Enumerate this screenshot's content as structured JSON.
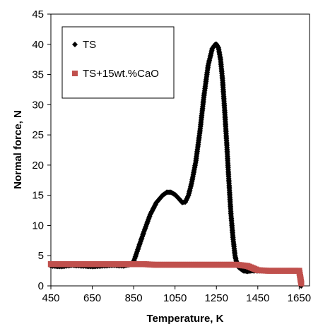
{
  "chart_data": {
    "type": "scatter",
    "title": "",
    "xlabel": "Temperature, K",
    "ylabel": "Normal force, N",
    "xlim": [
      450,
      1700
    ],
    "ylim": [
      0,
      45
    ],
    "xticks": [
      "450",
      "650",
      "850",
      "1050",
      "1250",
      "1450",
      "1650"
    ],
    "yticks": [
      "0",
      "5",
      "10",
      "15",
      "20",
      "25",
      "30",
      "35",
      "40",
      "45"
    ],
    "grid": false,
    "legend_position": "top-left",
    "series": [
      {
        "name": "TS",
        "marker": "diamond",
        "color": "#000000",
        "x": [
          450,
          500,
          550,
          600,
          650,
          700,
          750,
          800,
          830,
          850,
          870,
          900,
          930,
          960,
          990,
          1010,
          1030,
          1050,
          1070,
          1085,
          1100,
          1115,
          1130,
          1150,
          1170,
          1190,
          1210,
          1230,
          1245,
          1250,
          1260,
          1270,
          1280,
          1290,
          1300,
          1310,
          1320,
          1330,
          1340,
          1350,
          1360,
          1380,
          1400,
          1420,
          1450,
          1500,
          1550,
          1600,
          1650,
          1655,
          1660
        ],
        "y": [
          3.3,
          3.2,
          3.4,
          3.3,
          3.2,
          3.3,
          3.4,
          3.3,
          3.5,
          4.0,
          6.0,
          9.0,
          11.8,
          13.8,
          15.0,
          15.5,
          15.5,
          15.1,
          14.4,
          13.8,
          13.9,
          15.0,
          17.0,
          20.5,
          25.5,
          31.5,
          36.5,
          39.3,
          40.0,
          40.0,
          39.4,
          37.5,
          34.0,
          29.0,
          23.5,
          17.5,
          12.0,
          8.0,
          5.0,
          3.5,
          3.0,
          2.5,
          2.4,
          2.5,
          2.5,
          2.5,
          2.5,
          2.5,
          2.4,
          1.0,
          0.0
        ]
      },
      {
        "name": "TS+15wt.%CaO",
        "marker": "square",
        "color": "#c0504d",
        "x": [
          450,
          500,
          550,
          600,
          650,
          700,
          750,
          800,
          850,
          900,
          950,
          1000,
          1050,
          1100,
          1150,
          1200,
          1250,
          1300,
          1350,
          1400,
          1450,
          1500,
          1550,
          1600,
          1650,
          1655,
          1660
        ],
        "y": [
          3.6,
          3.6,
          3.6,
          3.6,
          3.6,
          3.6,
          3.6,
          3.6,
          3.6,
          3.6,
          3.5,
          3.5,
          3.5,
          3.5,
          3.5,
          3.5,
          3.5,
          3.5,
          3.5,
          3.3,
          2.6,
          2.5,
          2.5,
          2.5,
          2.5,
          1.5,
          0.4
        ]
      }
    ]
  }
}
